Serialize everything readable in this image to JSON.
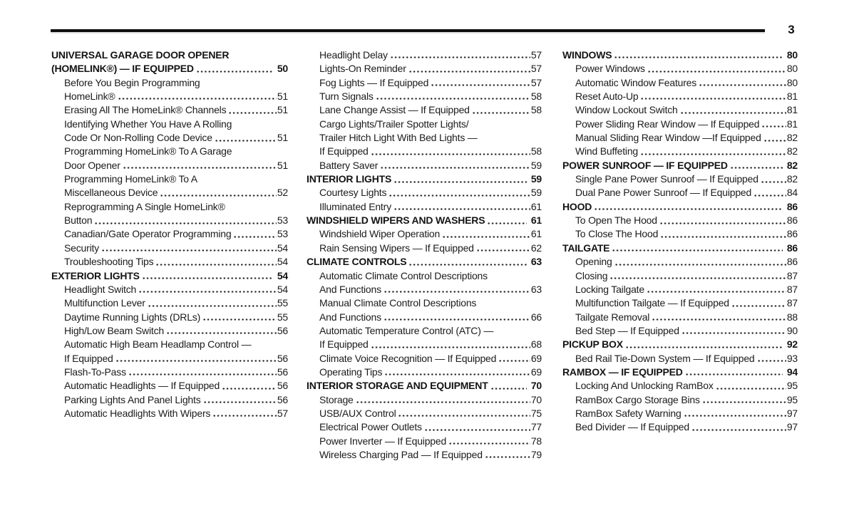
{
  "page": {
    "number": "3"
  },
  "colors": {
    "text": "#1b1b1b",
    "rule": "#0e0e0e",
    "background": "#ffffff"
  },
  "toc": {
    "columns": [
      {
        "entries": [
          {
            "level": "section",
            "lines": [
              "UNIVERSAL GARAGE DOOR OPENER",
              "(HOMELINK®) — IF EQUIPPED"
            ],
            "page": "50"
          },
          {
            "level": "sub",
            "lines": [
              "Before You Begin Programming",
              "HomeLink®"
            ],
            "page": "51"
          },
          {
            "level": "sub",
            "lines": [
              "Erasing All The HomeLink® Channels"
            ],
            "page": "51"
          },
          {
            "level": "sub",
            "lines": [
              "Identifying Whether You Have A Rolling",
              "Code Or Non-Rolling Code Device"
            ],
            "page": "51"
          },
          {
            "level": "sub",
            "lines": [
              "Programming HomeLink® To A Garage",
              "Door Opener"
            ],
            "page": "51"
          },
          {
            "level": "sub",
            "lines": [
              "Programming HomeLink® To A",
              "Miscellaneous Device"
            ],
            "page": "52"
          },
          {
            "level": "sub",
            "lines": [
              "Reprogramming A Single HomeLink®",
              "Button"
            ],
            "page": "53"
          },
          {
            "level": "sub",
            "lines": [
              "Canadian/Gate Operator Programming"
            ],
            "page": "53"
          },
          {
            "level": "sub",
            "lines": [
              "Security"
            ],
            "page": "54"
          },
          {
            "level": "sub",
            "lines": [
              "Troubleshooting Tips"
            ],
            "page": "54"
          },
          {
            "level": "section",
            "lines": [
              "EXTERIOR LIGHTS"
            ],
            "page": "54"
          },
          {
            "level": "sub",
            "lines": [
              "Headlight Switch"
            ],
            "page": "54"
          },
          {
            "level": "sub",
            "lines": [
              "Multifunction Lever"
            ],
            "page": "55"
          },
          {
            "level": "sub",
            "lines": [
              "Daytime Running Lights (DRLs)"
            ],
            "page": "55"
          },
          {
            "level": "sub",
            "lines": [
              "High/Low Beam Switch"
            ],
            "page": "56"
          },
          {
            "level": "sub",
            "lines": [
              "Automatic High Beam Headlamp Control —",
              "If Equipped"
            ],
            "page": "56"
          },
          {
            "level": "sub",
            "lines": [
              "Flash-To-Pass"
            ],
            "page": "56"
          },
          {
            "level": "sub",
            "lines": [
              "Automatic Headlights — If Equipped"
            ],
            "page": "56"
          },
          {
            "level": "sub",
            "lines": [
              "Parking Lights And Panel Lights"
            ],
            "page": "56"
          },
          {
            "level": "sub",
            "lines": [
              "Automatic Headlights With Wipers"
            ],
            "page": "57"
          }
        ]
      },
      {
        "entries": [
          {
            "level": "sub",
            "lines": [
              "Headlight Delay"
            ],
            "page": "57"
          },
          {
            "level": "sub",
            "lines": [
              "Lights-On Reminder"
            ],
            "page": "57"
          },
          {
            "level": "sub",
            "lines": [
              "Fog Lights — If Equipped"
            ],
            "page": "57"
          },
          {
            "level": "sub",
            "lines": [
              "Turn Signals"
            ],
            "page": "58"
          },
          {
            "level": "sub",
            "lines": [
              "Lane Change Assist — If Equipped"
            ],
            "page": "58"
          },
          {
            "level": "sub",
            "lines": [
              "Cargo Lights/Trailer Spotter Lights/",
              "Trailer Hitch Light With Bed Lights —",
              "If Equipped"
            ],
            "page": "58"
          },
          {
            "level": "sub",
            "lines": [
              "Battery Saver"
            ],
            "page": "59"
          },
          {
            "level": "section",
            "lines": [
              "INTERIOR LIGHTS"
            ],
            "page": "59"
          },
          {
            "level": "sub",
            "lines": [
              "Courtesy Lights"
            ],
            "page": "59"
          },
          {
            "level": "sub",
            "lines": [
              "Illuminated Entry"
            ],
            "page": "61"
          },
          {
            "level": "section",
            "lines": [
              "WINDSHIELD WIPERS AND WASHERS"
            ],
            "page": "61"
          },
          {
            "level": "sub",
            "lines": [
              "Windshield Wiper Operation"
            ],
            "page": "61"
          },
          {
            "level": "sub",
            "lines": [
              "Rain Sensing Wipers — If Equipped"
            ],
            "page": "62"
          },
          {
            "level": "section",
            "lines": [
              "CLIMATE CONTROLS"
            ],
            "page": "63"
          },
          {
            "level": "sub",
            "lines": [
              "Automatic Climate Control Descriptions",
              "And Functions"
            ],
            "page": "63"
          },
          {
            "level": "sub",
            "lines": [
              "Manual Climate Control Descriptions",
              "And Functions"
            ],
            "page": "66"
          },
          {
            "level": "sub",
            "lines": [
              "Automatic Temperature Control (ATC) —",
              "If Equipped"
            ],
            "page": "68"
          },
          {
            "level": "sub",
            "lines": [
              "Climate Voice Recognition — If Equipped"
            ],
            "page": "69"
          },
          {
            "level": "sub",
            "lines": [
              "Operating Tips"
            ],
            "page": "69"
          },
          {
            "level": "section",
            "lines": [
              "INTERIOR STORAGE AND EQUIPMENT"
            ],
            "page": "70"
          },
          {
            "level": "sub",
            "lines": [
              "Storage"
            ],
            "page": "70"
          },
          {
            "level": "sub",
            "lines": [
              "USB/AUX Control"
            ],
            "page": "75"
          },
          {
            "level": "sub",
            "lines": [
              "Electrical Power Outlets"
            ],
            "page": "77"
          },
          {
            "level": "sub",
            "lines": [
              "Power Inverter — If Equipped"
            ],
            "page": "78"
          },
          {
            "level": "sub",
            "lines": [
              "Wireless Charging Pad — If Equipped"
            ],
            "page": "79"
          }
        ]
      },
      {
        "entries": [
          {
            "level": "section",
            "lines": [
              "WINDOWS"
            ],
            "page": "80"
          },
          {
            "level": "sub",
            "lines": [
              "Power Windows"
            ],
            "page": "80"
          },
          {
            "level": "sub",
            "lines": [
              "Automatic Window Features"
            ],
            "page": "80"
          },
          {
            "level": "sub",
            "lines": [
              "Reset Auto-Up"
            ],
            "page": "81"
          },
          {
            "level": "sub",
            "lines": [
              "Window Lockout Switch"
            ],
            "page": "81"
          },
          {
            "level": "sub",
            "lines": [
              "Power Sliding Rear Window — If Equipped"
            ],
            "page": "81"
          },
          {
            "level": "sub",
            "lines": [
              "Manual Sliding Rear Window —If Equipped"
            ],
            "page": "82"
          },
          {
            "level": "sub",
            "lines": [
              "Wind Buffeting"
            ],
            "page": "82"
          },
          {
            "level": "section",
            "lines": [
              "POWER SUNROOF — IF EQUIPPED"
            ],
            "page": "82"
          },
          {
            "level": "sub",
            "lines": [
              "Single Pane Power Sunroof — If Equipped"
            ],
            "page": "82"
          },
          {
            "level": "sub",
            "lines": [
              "Dual Pane Power Sunroof — If Equipped"
            ],
            "page": "84"
          },
          {
            "level": "section",
            "lines": [
              "HOOD"
            ],
            "page": "86"
          },
          {
            "level": "sub",
            "lines": [
              "To Open The Hood"
            ],
            "page": "86"
          },
          {
            "level": "sub",
            "lines": [
              "To Close The Hood"
            ],
            "page": "86"
          },
          {
            "level": "section",
            "lines": [
              "TAILGATE"
            ],
            "page": "86"
          },
          {
            "level": "sub",
            "lines": [
              "Opening"
            ],
            "page": "86"
          },
          {
            "level": "sub",
            "lines": [
              "Closing"
            ],
            "page": "87"
          },
          {
            "level": "sub",
            "lines": [
              "Locking Tailgate"
            ],
            "page": "87"
          },
          {
            "level": "sub",
            "lines": [
              "Multifunction Tailgate — If Equipped"
            ],
            "page": "87"
          },
          {
            "level": "sub",
            "lines": [
              "Tailgate Removal"
            ],
            "page": "88"
          },
          {
            "level": "sub",
            "lines": [
              "Bed Step — If Equipped"
            ],
            "page": "90"
          },
          {
            "level": "section",
            "lines": [
              "PICKUP BOX"
            ],
            "page": "92"
          },
          {
            "level": "sub",
            "lines": [
              "Bed Rail Tie-Down System — If Equipped"
            ],
            "page": "93"
          },
          {
            "level": "section",
            "lines": [
              "RAMBOX — IF EQUIPPED"
            ],
            "page": "94"
          },
          {
            "level": "sub",
            "lines": [
              "Locking And Unlocking RamBox"
            ],
            "page": "95"
          },
          {
            "level": "sub",
            "lines": [
              "RamBox Cargo Storage Bins"
            ],
            "page": "95"
          },
          {
            "level": "sub",
            "lines": [
              "RamBox Safety Warning"
            ],
            "page": "97"
          },
          {
            "level": "sub",
            "lines": [
              "Bed Divider — If Equipped"
            ],
            "page": "97"
          }
        ]
      }
    ]
  }
}
